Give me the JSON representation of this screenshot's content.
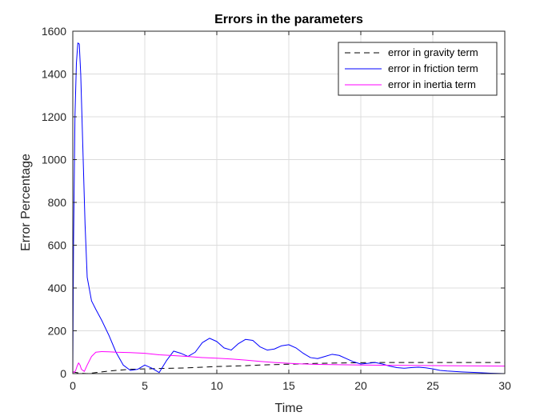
{
  "chart_data": {
    "type": "line",
    "title": "Errors in the parameters",
    "xlabel": "Time",
    "ylabel": "Error Percentage",
    "xlim": [
      0,
      30
    ],
    "ylim": [
      0,
      1600
    ],
    "xticks": [
      0,
      5,
      10,
      15,
      20,
      25,
      30
    ],
    "yticks": [
      0,
      200,
      400,
      600,
      800,
      1000,
      1200,
      1400,
      1600
    ],
    "grid": true,
    "legend_position": "top-right",
    "series": [
      {
        "name": "error in gravity term",
        "color": "#000000",
        "dash": "dashed",
        "x": [
          0,
          0.5,
          1,
          2,
          3,
          4,
          5,
          6,
          7,
          8,
          9,
          10,
          11,
          12,
          13,
          14,
          15,
          16,
          17,
          18,
          19,
          20,
          21,
          22,
          23,
          24,
          25,
          26,
          27,
          28,
          29,
          30
        ],
        "y": [
          8,
          2,
          0,
          8,
          15,
          20,
          22,
          24,
          25,
          27,
          30,
          33,
          35,
          37,
          40,
          42,
          44,
          46,
          48,
          49,
          50,
          51,
          52,
          52,
          52,
          52,
          52,
          52,
          52,
          52,
          52,
          52
        ]
      },
      {
        "name": "error in friction term",
        "color": "#0000ff",
        "dash": "solid",
        "x": [
          0,
          0.05,
          0.15,
          0.25,
          0.35,
          0.45,
          0.55,
          0.7,
          0.85,
          1.0,
          1.3,
          1.6,
          2.0,
          2.5,
          3.0,
          3.5,
          4.0,
          4.5,
          5.0,
          5.5,
          6.0,
          6.5,
          7.0,
          7.5,
          8.0,
          8.5,
          9.0,
          9.5,
          10.0,
          10.5,
          11.0,
          11.5,
          12.0,
          12.5,
          13.0,
          13.5,
          14.0,
          14.5,
          15.0,
          15.5,
          16.0,
          16.5,
          17.0,
          17.5,
          18.0,
          18.5,
          19.0,
          19.5,
          20.0,
          20.5,
          21.0,
          21.5,
          22.0,
          22.5,
          23.0,
          23.5,
          24.0,
          24.5,
          25.0,
          25.5,
          26.0,
          27.0,
          28.0,
          29.0,
          30.0
        ],
        "y": [
          0,
          600,
          1200,
          1450,
          1545,
          1540,
          1400,
          1050,
          700,
          450,
          340,
          300,
          250,
          180,
          100,
          40,
          15,
          20,
          40,
          25,
          5,
          60,
          105,
          95,
          80,
          100,
          145,
          165,
          150,
          120,
          110,
          140,
          160,
          155,
          125,
          110,
          115,
          130,
          135,
          120,
          95,
          75,
          70,
          80,
          90,
          85,
          70,
          55,
          45,
          48,
          52,
          45,
          35,
          28,
          25,
          28,
          30,
          27,
          22,
          15,
          12,
          8,
          5,
          2,
          0
        ]
      },
      {
        "name": "error in inertia term",
        "color": "#ff00ff",
        "dash": "solid",
        "x": [
          0,
          0.1,
          0.2,
          0.3,
          0.4,
          0.5,
          0.6,
          0.8,
          1.0,
          1.3,
          1.6,
          2.0,
          2.5,
          3.0,
          4.0,
          5.0,
          6.0,
          7.0,
          8.0,
          9.0,
          10.0,
          11.0,
          12.0,
          13.0,
          14.0,
          15.0,
          16.0,
          17.0,
          18.0,
          19.0,
          20.0,
          22.0,
          24.0,
          26.0,
          28.0,
          30.0
        ],
        "y": [
          10,
          5,
          15,
          35,
          50,
          40,
          20,
          10,
          40,
          80,
          100,
          103,
          102,
          100,
          98,
          95,
          88,
          84,
          80,
          75,
          72,
          68,
          63,
          57,
          52,
          48,
          45,
          43,
          42,
          41,
          40,
          39,
          38,
          37,
          36,
          35
        ]
      }
    ]
  }
}
